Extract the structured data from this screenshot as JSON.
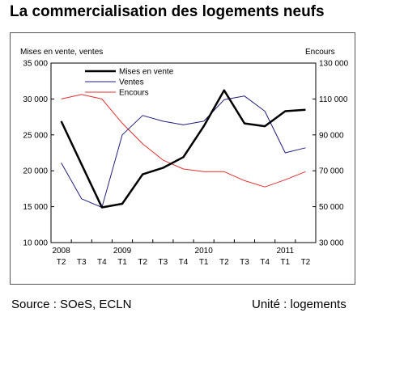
{
  "page": {
    "title": "La commercialisation des logements neufs",
    "source": "Source : SOeS, ECLN",
    "unit": "Unité : logements"
  },
  "chart_data": {
    "type": "line",
    "title": "La commercialisation des logements neufs",
    "left_axis_label": "Mises en vente, ventes",
    "right_axis_label": "Encours",
    "left_ylim": [
      10000,
      35000
    ],
    "right_ylim": [
      30000,
      130000
    ],
    "left_ticks": [
      "10 000",
      "15 000",
      "20 000",
      "25 000",
      "30 000",
      "35 000"
    ],
    "right_ticks": [
      "30 000",
      "50 000",
      "70 000",
      "90 000",
      "110 000",
      "130 000"
    ],
    "x_quarter_labels": [
      "T2",
      "T3",
      "T4",
      "T1",
      "T2",
      "T3",
      "T4",
      "T1",
      "T2",
      "T3",
      "T4",
      "T1",
      "T2"
    ],
    "x_year_labels": [
      {
        "label": "2008",
        "index": 0
      },
      {
        "label": "2009",
        "index": 3
      },
      {
        "label": "2010",
        "index": 7
      },
      {
        "label": "2011",
        "index": 11
      }
    ],
    "legend_position": "top-left",
    "series": [
      {
        "name": "Mises en vente",
        "axis": "left",
        "color": "#000000",
        "width": 2.5,
        "values": [
          26900,
          20900,
          14900,
          15400,
          19500,
          20400,
          21900,
          26200,
          31200,
          26600,
          26200,
          28300,
          28500
        ]
      },
      {
        "name": "Ventes",
        "axis": "left",
        "color": "#1f1f7a",
        "width": 1,
        "values": [
          21100,
          16100,
          14900,
          25000,
          27700,
          26900,
          26400,
          26900,
          29900,
          30400,
          28300,
          22500,
          23200
        ]
      },
      {
        "name": "Encours",
        "axis": "right",
        "color": "#e03030",
        "width": 1,
        "values": [
          110000,
          112500,
          110000,
          96500,
          85000,
          76000,
          71000,
          69500,
          69500,
          64500,
          61000,
          65000,
          69500
        ]
      }
    ]
  }
}
